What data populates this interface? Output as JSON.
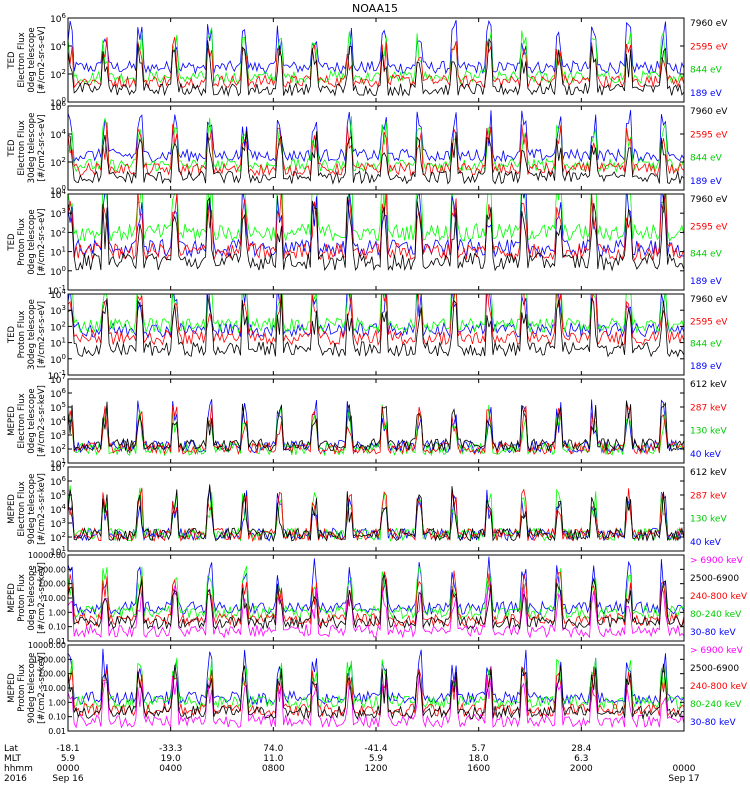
{
  "title": "NOAA15",
  "colors": {
    "black": "#000000",
    "red": "#ff0000",
    "green": "#00ff00",
    "green_label": "#00cc00",
    "blue": "#0000ff",
    "magenta": "#ff00ff"
  },
  "chart_data": [
    {
      "type": "line",
      "ylabel": [
        "TED",
        "Electron Flux",
        "0deg telescope",
        "[#/cm2-sr-s-eV]"
      ],
      "yscale": "log",
      "ylim": [
        1,
        1000000
      ],
      "yticks": [
        "10^6",
        "10^4",
        "10^2",
        "10^0"
      ],
      "legend": [
        {
          "label": "7960 eV",
          "color": "#000000"
        },
        {
          "label": "2595 eV",
          "color": "#ff0000"
        },
        {
          "label": "844 eV",
          "color": "#00cc00"
        },
        {
          "label": "189 eV",
          "color": "#0000ff"
        }
      ],
      "series": [
        {
          "color": "#0000ff",
          "baseline": 300
        },
        {
          "color": "#00ff00",
          "baseline": 60
        },
        {
          "color": "#ff0000",
          "baseline": 30
        },
        {
          "color": "#000000",
          "baseline": 8
        }
      ]
    },
    {
      "type": "line",
      "ylabel": [
        "TED",
        "Electron Flux",
        "30deg telescope",
        "[#/cm2-sr-s-eV]"
      ],
      "yscale": "log",
      "ylim": [
        1,
        1000000
      ],
      "yticks": [
        "10^6",
        "10^4",
        "10^2",
        "10^0"
      ],
      "legend": [
        {
          "label": "7960 eV",
          "color": "#000000"
        },
        {
          "label": "2595 eV",
          "color": "#ff0000"
        },
        {
          "label": "844 eV",
          "color": "#00cc00"
        },
        {
          "label": "189 eV",
          "color": "#0000ff"
        }
      ],
      "series": [
        {
          "color": "#0000ff",
          "baseline": 300
        },
        {
          "color": "#00ff00",
          "baseline": 60
        },
        {
          "color": "#ff0000",
          "baseline": 30
        },
        {
          "color": "#000000",
          "baseline": 8
        }
      ]
    },
    {
      "type": "line",
      "ylabel": [
        "TED",
        "Proton Flux",
        "0deg telescope",
        "[#/cm2-sr-s-eV]"
      ],
      "yscale": "log",
      "ylim": [
        0.1,
        10000
      ],
      "yticks": [
        "10^4",
        "10^3",
        "10^2",
        "10^1",
        "10^0",
        "10^-1"
      ],
      "legend": [
        {
          "label": "7960 eV",
          "color": "#000000"
        },
        {
          "label": "2595 eV",
          "color": "#ff0000"
        },
        {
          "label": "844 eV",
          "color": "#00cc00"
        },
        {
          "label": "189 eV",
          "color": "#0000ff"
        }
      ],
      "series": [
        {
          "color": "#00ff00",
          "baseline": 100
        },
        {
          "color": "#0000ff",
          "baseline": 15
        },
        {
          "color": "#ff0000",
          "baseline": 10
        },
        {
          "color": "#000000",
          "baseline": 3
        }
      ]
    },
    {
      "type": "line",
      "ylabel": [
        "TED",
        "Proton Flux",
        "30deg telescope",
        "[#/cm2-sr-s-eV]"
      ],
      "yscale": "log",
      "ylim": [
        0.1,
        10000
      ],
      "yticks": [
        "10^4",
        "10^3",
        "10^2",
        "10^1",
        "10^0",
        "10^-1"
      ],
      "legend": [
        {
          "label": "7960 eV",
          "color": "#000000"
        },
        {
          "label": "2595 eV",
          "color": "#ff0000"
        },
        {
          "label": "844 eV",
          "color": "#00cc00"
        },
        {
          "label": "189 eV",
          "color": "#0000ff"
        }
      ],
      "series": [
        {
          "color": "#0000ff",
          "baseline": 60
        },
        {
          "color": "#00ff00",
          "baseline": 120
        },
        {
          "color": "#ff0000",
          "baseline": 20
        },
        {
          "color": "#000000",
          "baseline": 4
        }
      ]
    },
    {
      "type": "line",
      "ylabel": [
        "MEPED",
        "Electron Flux",
        "0deg telescope",
        "[#/cm2-s-sr-keV]"
      ],
      "yscale": "log",
      "ylim": [
        10,
        10000000
      ],
      "yticks": [
        "10^7",
        "10^6",
        "10^5",
        "10^4",
        "10^3",
        "10^2",
        "10^1"
      ],
      "legend": [
        {
          "label": "612 keV",
          "color": "#000000"
        },
        {
          "label": "287 keV",
          "color": "#ff0000"
        },
        {
          "label": "130 keV",
          "color": "#00cc00"
        },
        {
          "label": "40 keV",
          "color": "#0000ff"
        }
      ],
      "series": [
        {
          "color": "#0000ff",
          "baseline": 150
        },
        {
          "color": "#00ff00",
          "baseline": 100
        },
        {
          "color": "#ff0000",
          "baseline": 120
        },
        {
          "color": "#000000",
          "baseline": 200
        }
      ]
    },
    {
      "type": "line",
      "ylabel": [
        "MEPED",
        "Electron Flux",
        "90deg telescope",
        "[#/cm2-s-sr-keV]"
      ],
      "yscale": "log",
      "ylim": [
        10,
        10000000
      ],
      "yticks": [
        "10^7",
        "10^6",
        "10^5",
        "10^4",
        "10^3",
        "10^2",
        "10^1"
      ],
      "legend": [
        {
          "label": "612 keV",
          "color": "#000000"
        },
        {
          "label": "287 keV",
          "color": "#ff0000"
        },
        {
          "label": "130 keV",
          "color": "#00cc00"
        },
        {
          "label": "40 keV",
          "color": "#0000ff"
        }
      ],
      "series": [
        {
          "color": "#0000ff",
          "baseline": 150
        },
        {
          "color": "#00ff00",
          "baseline": 150
        },
        {
          "color": "#ff0000",
          "baseline": 150
        },
        {
          "color": "#000000",
          "baseline": 150
        }
      ]
    },
    {
      "type": "line",
      "ylabel": [
        "MEPED",
        "Proton Flux",
        "0deg telescope",
        "[#/cm2-s-sr-keV]"
      ],
      "yscale": "log",
      "ylim": [
        0.01,
        10000
      ],
      "yticks": [
        "10000.00",
        "1000.00",
        "100.00",
        "10.00",
        "1.00",
        "0.10",
        "0.01"
      ],
      "legend": [
        {
          "label": "> 6900 keV",
          "color": "#ff00ff"
        },
        {
          "label": "2500-6900",
          "color": "#000000"
        },
        {
          "label": "240-800 keV",
          "color": "#ff0000"
        },
        {
          "label": "80-240 keV",
          "color": "#00cc00"
        },
        {
          "label": "30-80 keV",
          "color": "#0000ff"
        }
      ],
      "series": [
        {
          "color": "#0000ff",
          "baseline": 2
        },
        {
          "color": "#00ff00",
          "baseline": 1
        },
        {
          "color": "#ff0000",
          "baseline": 0.3
        },
        {
          "color": "#ff00ff",
          "baseline": 0.05
        },
        {
          "color": "#000000",
          "baseline": 0.2
        }
      ]
    },
    {
      "type": "line",
      "ylabel": [
        "MEPED",
        "Proton Flux",
        "90deg telescope",
        "[#/cm2-s-sr-keV]"
      ],
      "yscale": "log",
      "ylim": [
        0.01,
        10000
      ],
      "yticks": [
        "10000.00",
        "1000.00",
        "100.00",
        "10.00",
        "1.00",
        "0.10",
        "0.01"
      ],
      "legend": [
        {
          "label": "> 6900 keV",
          "color": "#ff00ff"
        },
        {
          "label": "2500-6900",
          "color": "#000000"
        },
        {
          "label": "240-800 keV",
          "color": "#ff0000"
        },
        {
          "label": "80-240 keV",
          "color": "#00cc00"
        },
        {
          "label": "30-80 keV",
          "color": "#0000ff"
        }
      ],
      "series": [
        {
          "color": "#0000ff",
          "baseline": 2
        },
        {
          "color": "#00ff00",
          "baseline": 1
        },
        {
          "color": "#ff0000",
          "baseline": 0.3
        },
        {
          "color": "#ff00ff",
          "baseline": 0.05
        },
        {
          "color": "#000000",
          "baseline": 0.2
        }
      ]
    }
  ],
  "xaxis": {
    "row_labels": [
      "Lat",
      "MLT",
      "hhmm",
      "2016"
    ],
    "columns": [
      {
        "lat": "-18.1",
        "mlt": "5.9",
        "hhmm": "0000",
        "date": "Sep 16"
      },
      {
        "lat": "-33.3",
        "mlt": "19.0",
        "hhmm": "0400",
        "date": ""
      },
      {
        "lat": "74.0",
        "mlt": "11.0",
        "hhmm": "0800",
        "date": ""
      },
      {
        "lat": "-41.4",
        "mlt": "5.9",
        "hhmm": "1200",
        "date": ""
      },
      {
        "lat": "5.7",
        "mlt": "18.0",
        "hhmm": "1600",
        "date": ""
      },
      {
        "lat": "28.4",
        "mlt": "6.3",
        "hhmm": "2000",
        "date": ""
      },
      {
        "lat": "",
        "mlt": "",
        "hhmm": "0000",
        "date": "Sep 17"
      }
    ]
  }
}
